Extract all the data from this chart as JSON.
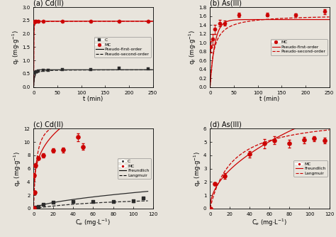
{
  "panel_a": {
    "title": "(a) Cd(II)",
    "C_t_data": [
      1,
      3,
      5,
      10,
      20,
      30,
      60,
      120,
      180,
      240
    ],
    "C_qt": [
      0.52,
      0.55,
      0.57,
      0.6,
      0.62,
      0.63,
      0.65,
      0.65,
      0.7,
      0.68
    ],
    "MC_t_data": [
      1,
      3,
      5,
      10,
      20,
      60,
      120,
      180,
      240
    ],
    "MC_qt": [
      2.45,
      2.47,
      2.48,
      2.47,
      2.48,
      2.47,
      2.47,
      2.48,
      2.47
    ],
    "C_pfo": [
      0.65,
      0.45
    ],
    "C_pso": [
      0.65,
      0.9
    ],
    "MC_pfo": [
      2.47,
      2.5
    ],
    "MC_pso": [
      2.47,
      3.0
    ],
    "xlabel": "t (min)",
    "ylabel": "q$_{t}$ (mg$\\cdot$g$^{-1}$)",
    "xlim": [
      0,
      250
    ],
    "ylim": [
      0.0,
      3.0
    ],
    "yticks": [
      0.0,
      0.5,
      1.0,
      1.5,
      2.0,
      2.5,
      3.0
    ],
    "xticks": [
      0,
      50,
      100,
      150,
      200,
      250
    ]
  },
  "panel_b": {
    "title": "(b) As(III)",
    "MC_t_data": [
      1,
      5,
      10,
      20,
      30,
      60,
      120,
      180,
      240
    ],
    "MC_qt": [
      0.9,
      1.08,
      1.3,
      1.44,
      1.44,
      1.62,
      1.63,
      1.63,
      1.7
    ],
    "MC_err": [
      0.13,
      0.12,
      0.1,
      0.07,
      0.06,
      0.05,
      0.04,
      0.03,
      0.06
    ],
    "MC_pfo": [
      1.52,
      0.1
    ],
    "MC_pso": [
      1.63,
      0.075
    ],
    "xlabel": "t (min)",
    "ylabel": "q$_{t}$ (mg$\\cdot$g$^{-1}$)",
    "xlim": [
      0,
      250
    ],
    "ylim": [
      0.0,
      1.8
    ],
    "yticks": [
      0.0,
      0.2,
      0.4,
      0.6,
      0.8,
      1.0,
      1.2,
      1.4,
      1.6,
      1.8
    ],
    "xticks": [
      0,
      50,
      100,
      150,
      200,
      250
    ]
  },
  "panel_c": {
    "title": "(c) Cd(II)",
    "C_ce_data": [
      0.3,
      1,
      2,
      5,
      10,
      20,
      40,
      60,
      80,
      100,
      110
    ],
    "C_qe": [
      0.05,
      0.1,
      0.25,
      0.35,
      0.65,
      0.9,
      1.05,
      1.1,
      1.1,
      1.15,
      1.55
    ],
    "C_err": [
      0.02,
      0.02,
      0.03,
      0.03,
      0.04,
      0.04,
      0.04,
      0.04,
      0.04,
      0.15,
      0.04
    ],
    "MC_ce_data": [
      0.3,
      0.5,
      1,
      2,
      5,
      10,
      20,
      30,
      45,
      50
    ],
    "MC_qe": [
      0.05,
      5.0,
      2.4,
      6.5,
      7.6,
      8.0,
      8.7,
      8.8,
      10.7,
      9.3
    ],
    "MC_err": [
      0.05,
      0.3,
      0.3,
      0.3,
      0.3,
      0.3,
      0.3,
      0.4,
      0.6,
      0.5
    ],
    "C_freundlich": [
      0.15,
      0.6
    ],
    "C_langmuir": [
      2.0,
      0.012
    ],
    "MC_freundlich": [
      4.8,
      0.28
    ],
    "MC_langmuir": [
      14.0,
      0.35
    ],
    "xlabel": "C$_{e}$ (mg$\\cdot$L$^{-1}$)",
    "ylabel": "q$_{e}$ (mg$\\cdot$g$^{-1}$)",
    "xlim": [
      0,
      120
    ],
    "ylim": [
      0,
      12
    ],
    "yticks": [
      0,
      2,
      4,
      6,
      8,
      10,
      12
    ],
    "xticks": [
      0,
      20,
      40,
      60,
      80,
      100,
      120
    ]
  },
  "panel_d": {
    "title": "(d) As(III)",
    "MC_ce_data": [
      0.5,
      5,
      15,
      40,
      55,
      65,
      80,
      95,
      105,
      115
    ],
    "MC_qe": [
      0.0,
      1.87,
      2.45,
      4.07,
      4.88,
      5.12,
      4.87,
      5.15,
      5.25,
      5.12
    ],
    "MC_err": [
      0.02,
      0.1,
      0.2,
      0.25,
      0.35,
      0.3,
      0.3,
      0.25,
      0.2,
      0.2
    ],
    "MC_freundlich": [
      0.65,
      0.5
    ],
    "MC_langmuir": [
      7.0,
      0.045
    ],
    "xlabel": "C$_{e}$ (mg$\\cdot$L$^{-1}$)",
    "ylabel": "q$_{e}$ (mg$\\cdot$g$^{-1}$)",
    "xlim": [
      0,
      120
    ],
    "ylim": [
      0,
      6
    ],
    "yticks": [
      0,
      1,
      2,
      3,
      4,
      5,
      6
    ],
    "xticks": [
      0,
      20,
      40,
      60,
      80,
      100,
      120
    ]
  },
  "colors": {
    "C": "#2b2b2b",
    "MC": "#cc0000"
  },
  "bg_color": "#e8e4dc"
}
